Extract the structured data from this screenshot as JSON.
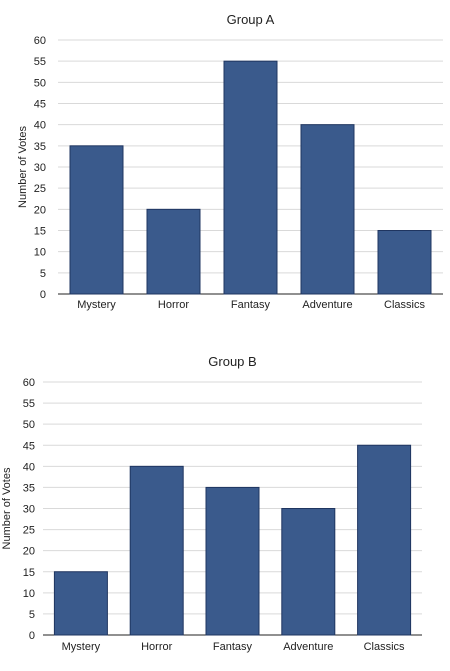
{
  "chart_data": [
    {
      "type": "bar",
      "title": "Group A",
      "categories": [
        "Mystery",
        "Horror",
        "Fantasy",
        "Adventure",
        "Classics"
      ],
      "values": [
        35,
        20,
        55,
        40,
        15
      ],
      "xlabel": "",
      "ylabel": "Number of Votes",
      "ylim": [
        0,
        60
      ],
      "yticks": [
        "0",
        "5",
        "10",
        "15",
        "20",
        "25",
        "30",
        "35",
        "40",
        "45",
        "50",
        "55",
        "60"
      ],
      "grid": true,
      "legend": "none",
      "bar_color": "#3a5a8c"
    },
    {
      "type": "bar",
      "title": "Group B",
      "categories": [
        "Mystery",
        "Horror",
        "Fantasy",
        "Adventure",
        "Classics"
      ],
      "values": [
        15,
        40,
        35,
        30,
        45
      ],
      "xlabel": "",
      "ylabel": "Number of Votes",
      "ylim": [
        0,
        60
      ],
      "yticks": [
        "0",
        "5",
        "10",
        "15",
        "20",
        "25",
        "30",
        "35",
        "40",
        "45",
        "50",
        "55",
        "60"
      ],
      "grid": true,
      "legend": "none",
      "bar_color": "#3a5a8c"
    }
  ]
}
